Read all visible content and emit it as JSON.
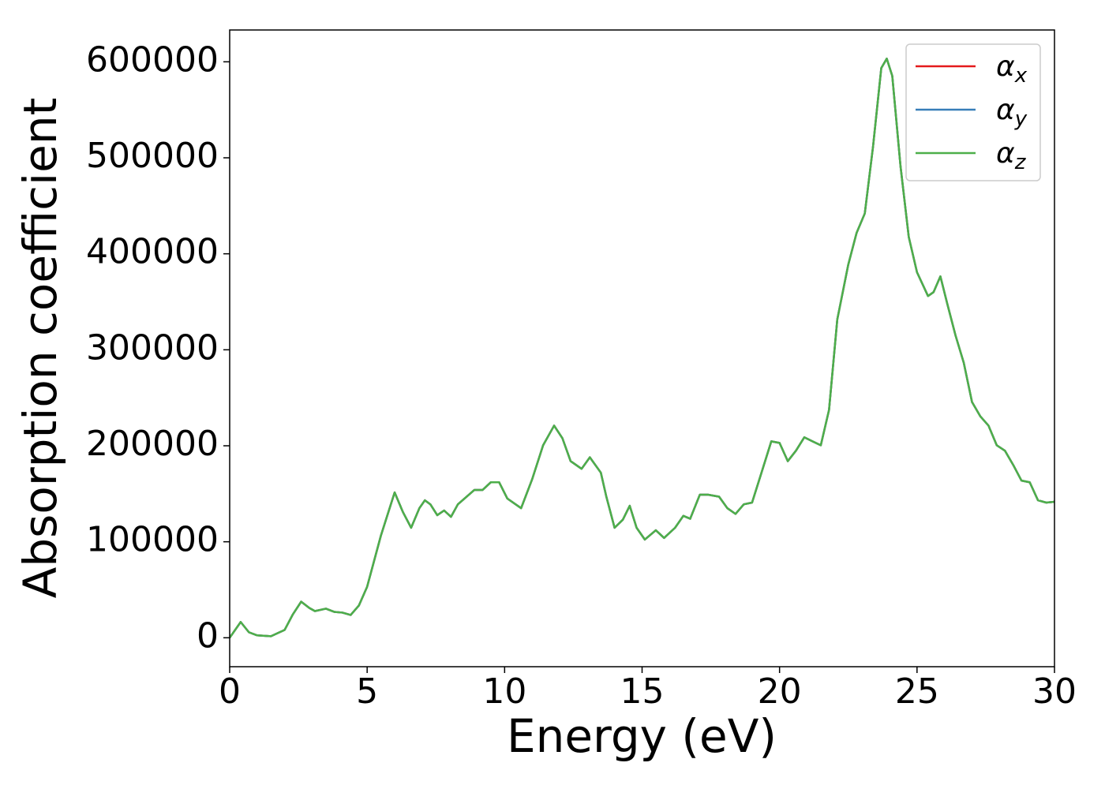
{
  "chart_data": {
    "type": "line",
    "xlabel": "Energy (eV)",
    "ylabel": "Absorption coefficient",
    "x": [
      0,
      0.4,
      0.7,
      1.0,
      1.5,
      2.0,
      2.3,
      2.6,
      2.9,
      3.1,
      3.5,
      3.8,
      4.1,
      4.4,
      4.7,
      5.0,
      5.5,
      6.0,
      6.3,
      6.6,
      6.9,
      7.1,
      7.3,
      7.55,
      7.8,
      8.05,
      8.3,
      8.6,
      8.9,
      9.2,
      9.5,
      9.8,
      10.1,
      10.6,
      11.0,
      11.4,
      11.8,
      12.1,
      12.4,
      12.8,
      13.1,
      13.5,
      13.7,
      14.0,
      14.3,
      14.55,
      14.8,
      15.1,
      15.5,
      15.8,
      16.2,
      16.5,
      16.75,
      17.1,
      17.4,
      17.8,
      18.1,
      18.4,
      18.7,
      19.0,
      19.3,
      19.7,
      20.0,
      20.3,
      20.6,
      20.9,
      21.2,
      21.5,
      21.8,
      22.1,
      22.5,
      22.8,
      23.1,
      23.4,
      23.7,
      23.9,
      24.1,
      24.4,
      24.7,
      25.0,
      25.4,
      25.6,
      25.85,
      26.1,
      26.4,
      26.7,
      27.0,
      27.3,
      27.6,
      27.9,
      28.2,
      28.5,
      28.8,
      29.1,
      29.4,
      29.7,
      30.0
    ],
    "series": [
      {
        "name": "αx",
        "color": "#e41a1c",
        "values": [
          0,
          16400,
          5700,
          2500,
          1600,
          8200,
          24500,
          37600,
          31000,
          27800,
          30300,
          27000,
          26200,
          23700,
          33600,
          53200,
          106400,
          151400,
          131000,
          114600,
          135000,
          143200,
          139000,
          127700,
          132600,
          126000,
          139000,
          146500,
          154000,
          154000,
          162000,
          162000,
          145000,
          135000,
          165000,
          200500,
          221000,
          208000,
          184000,
          176000,
          188000,
          172000,
          147000,
          114600,
          123000,
          137500,
          114600,
          102300,
          112000,
          104000,
          114600,
          127000,
          124000,
          149000,
          149000,
          147000,
          135000,
          129000,
          139000,
          140800,
          168000,
          204600,
          203000,
          184000,
          195000,
          208800,
          204600,
          200500,
          237400,
          331600,
          388800,
          421600,
          442000,
          511600,
          593500,
          603300,
          585300,
          491200,
          417500,
          380700,
          356000,
          360000,
          376500,
          348000,
          315000,
          286500,
          245600,
          230800,
          221000,
          200500,
          194800,
          180000,
          163700,
          162000,
          143200,
          140800,
          141600
        ]
      },
      {
        "name": "αy",
        "color": "#377eb8",
        "values": [
          0,
          16400,
          5700,
          2500,
          1600,
          8200,
          24500,
          37600,
          31000,
          27800,
          30300,
          27000,
          26200,
          23700,
          33600,
          53200,
          106400,
          151400,
          131000,
          114600,
          135000,
          143200,
          139000,
          127700,
          132600,
          126000,
          139000,
          146500,
          154000,
          154000,
          162000,
          162000,
          145000,
          135000,
          165000,
          200500,
          221000,
          208000,
          184000,
          176000,
          188000,
          172000,
          147000,
          114600,
          123000,
          137500,
          114600,
          102300,
          112000,
          104000,
          114600,
          127000,
          124000,
          149000,
          149000,
          147000,
          135000,
          129000,
          139000,
          140800,
          168000,
          204600,
          203000,
          184000,
          195000,
          208800,
          204600,
          200500,
          237400,
          331600,
          388800,
          421600,
          442000,
          511600,
          593500,
          603300,
          585300,
          491200,
          417500,
          380700,
          356000,
          360000,
          376500,
          348000,
          315000,
          286500,
          245600,
          230800,
          221000,
          200500,
          194800,
          180000,
          163700,
          162000,
          143200,
          140800,
          141600
        ]
      },
      {
        "name": "αz",
        "color": "#4daf4a",
        "values": [
          0,
          16400,
          5700,
          2500,
          1600,
          8200,
          24500,
          37600,
          31000,
          27800,
          30300,
          27000,
          26200,
          23700,
          33600,
          53200,
          106400,
          151400,
          131000,
          114600,
          135000,
          143200,
          139000,
          127700,
          132600,
          126000,
          139000,
          146500,
          154000,
          154000,
          162000,
          162000,
          145000,
          135000,
          165000,
          200500,
          221000,
          208000,
          184000,
          176000,
          188000,
          172000,
          147000,
          114600,
          123000,
          137500,
          114600,
          102300,
          112000,
          104000,
          114600,
          127000,
          124000,
          149000,
          149000,
          147000,
          135000,
          129000,
          139000,
          140800,
          168000,
          204600,
          203000,
          184000,
          195000,
          208800,
          204600,
          200500,
          237400,
          331600,
          388800,
          421600,
          442000,
          511600,
          593500,
          603300,
          585300,
          491200,
          417500,
          380700,
          356000,
          360000,
          376500,
          348000,
          315000,
          286500,
          245600,
          230800,
          221000,
          200500,
          194800,
          180000,
          163700,
          162000,
          143200,
          140800,
          141600
        ]
      }
    ],
    "xlim": [
      0,
      30
    ],
    "xticks": [
      0,
      5,
      10,
      15,
      20,
      25,
      30
    ],
    "ylim": [
      -30150,
      633150
    ],
    "yticks": [
      0,
      100000,
      200000,
      300000,
      400000,
      500000,
      600000
    ],
    "grid": false,
    "legend": "upper right"
  }
}
